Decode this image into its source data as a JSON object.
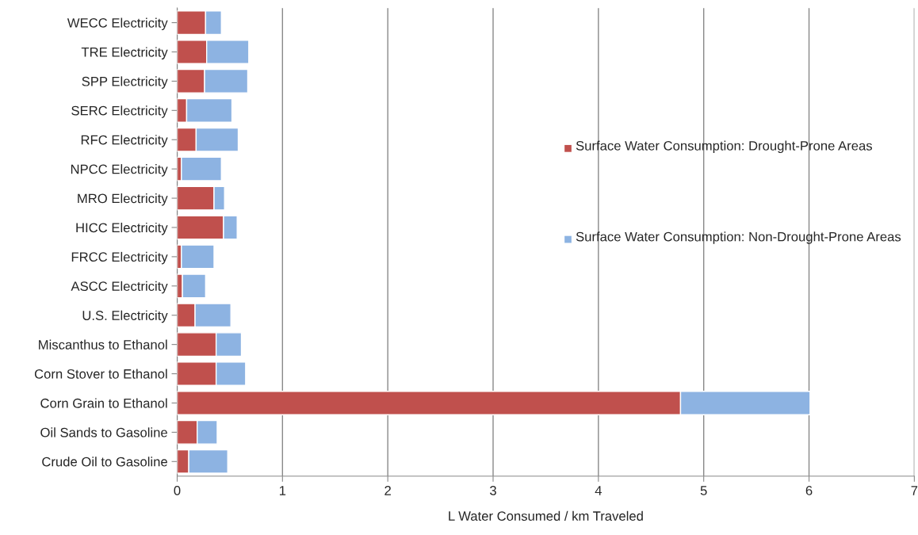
{
  "chart_data": {
    "type": "bar",
    "orientation": "horizontal",
    "stacked": true,
    "categories": [
      "WECC Electricity",
      "TRE Electricity",
      "SPP Electricity",
      "SERC Electricity",
      "RFC Electricity",
      "NPCC Electricity",
      "MRO Electricity",
      "HICC Electricity",
      "FRCC Electricity",
      "ASCC Electricity",
      "U.S. Electricity",
      "Miscanthus to Ethanol",
      "Corn Stover to Ethanol",
      "Corn Grain to Ethanol",
      "Oil Sands to Gasoline",
      "Crude Oil to Gasoline"
    ],
    "series": [
      {
        "name": "Surface Water Consumption: Drought-Prone Areas",
        "color": "#c0504d",
        "values": [
          0.27,
          0.28,
          0.26,
          0.09,
          0.18,
          0.04,
          0.35,
          0.44,
          0.04,
          0.05,
          0.17,
          0.37,
          0.37,
          4.78,
          0.19,
          0.11
        ]
      },
      {
        "name": "Surface Water Consumption: Non-Drought-Prone Areas",
        "color": "#8db3e2",
        "values": [
          0.15,
          0.4,
          0.41,
          0.43,
          0.4,
          0.38,
          0.1,
          0.13,
          0.31,
          0.22,
          0.34,
          0.24,
          0.28,
          1.23,
          0.19,
          0.37
        ]
      }
    ],
    "xlabel": "L Water Consumed / km Traveled",
    "xlim": [
      0,
      7
    ],
    "xticks": [
      0,
      1,
      2,
      3,
      4,
      5,
      6,
      7
    ],
    "grid": "x",
    "legend": "right"
  }
}
